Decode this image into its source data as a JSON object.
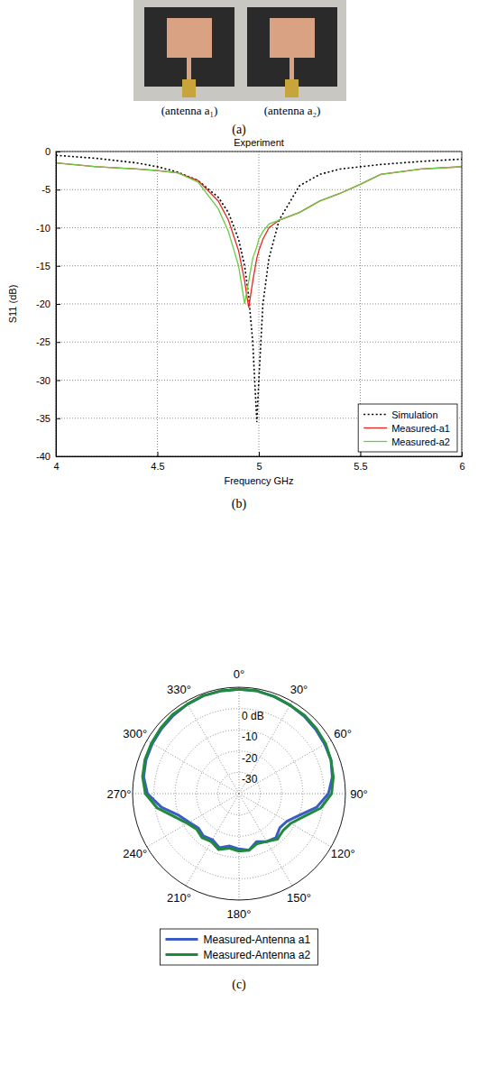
{
  "photo": {
    "labels": [
      "(antenna a₁)",
      "(antenna a₂)"
    ],
    "caption": "(a)"
  },
  "chart_data": [
    {
      "type": "line",
      "title": "Experiment",
      "xlabel": "Frequency GHz",
      "ylabel": "S11 (dB)",
      "caption": "(b)",
      "x": [
        4,
        4.2,
        4.4,
        4.5,
        4.6,
        4.7,
        4.8,
        4.85,
        4.9,
        4.93,
        4.95,
        4.97,
        4.99,
        5,
        5.02,
        5.05,
        5.1,
        5.2,
        5.3,
        5.4,
        5.5,
        5.6,
        5.8,
        6
      ],
      "series": [
        {
          "name": "Simulation",
          "color": "#000000",
          "line_style": "dotted",
          "values": [
            -0.5,
            -0.9,
            -1.5,
            -2,
            -2.7,
            -3.8,
            -6,
            -8,
            -11.5,
            -15,
            -19,
            -25,
            -35.5,
            -30,
            -20,
            -14,
            -9,
            -4.5,
            -3,
            -2.3,
            -2,
            -1.7,
            -1.3,
            -1
          ]
        },
        {
          "name": "Measured-a1",
          "color": "#e8251f",
          "line_style": "solid",
          "values": [
            -1.5,
            -2,
            -2.3,
            -2.5,
            -2.8,
            -3.8,
            -6.5,
            -9,
            -13,
            -17,
            -20.5,
            -17,
            -14,
            -13,
            -11.5,
            -10,
            -9,
            -8,
            -6.5,
            -5.5,
            -4.3,
            -3,
            -2.3,
            -2
          ]
        },
        {
          "name": "Measured-a2",
          "color": "#66cc44",
          "line_style": "solid",
          "values": [
            -1.5,
            -2,
            -2.3,
            -2.5,
            -2.8,
            -4,
            -7.5,
            -10.5,
            -15,
            -20,
            -17,
            -14,
            -12.5,
            -11.5,
            -10.5,
            -9.5,
            -9,
            -8,
            -6.5,
            -5.5,
            -4.3,
            -3,
            -2.3,
            -2
          ]
        }
      ],
      "xlim": [
        4,
        6
      ],
      "xticks": [
        4,
        4.5,
        5,
        5.5,
        6
      ],
      "ylim": [
        -40,
        0
      ],
      "yticks": [
        -40,
        -35,
        -30,
        -25,
        -20,
        -15,
        -10,
        -5,
        0
      ],
      "grid": true,
      "legend": "lower right"
    },
    {
      "type": "polar",
      "caption": "(c)",
      "x": [
        0,
        10,
        20,
        30,
        40,
        50,
        60,
        70,
        80,
        90,
        100,
        110,
        120,
        130,
        140,
        150,
        160,
        170,
        180,
        190,
        200,
        210,
        220,
        230,
        240,
        250,
        260,
        270,
        280,
        290,
        300,
        310,
        320,
        330,
        340,
        350,
        360
      ],
      "series": [
        {
          "name": "Measured-Antenna a1",
          "color": "#3b5cc4",
          "line_style": "solid",
          "values": [
            9,
            9,
            8.5,
            8,
            7.5,
            7,
            6.5,
            6,
            4.5,
            2,
            -3,
            -10,
            -14,
            -15,
            -13,
            -14,
            -16,
            -13,
            -14,
            -15,
            -13,
            -15,
            -14,
            -15,
            -13,
            -10,
            -3,
            3,
            5.5,
            6.5,
            7,
            7.5,
            8,
            8.5,
            9,
            9,
            9
          ]
        },
        {
          "name": "Measured-Antenna a2",
          "color": "#1f8a3c",
          "line_style": "solid",
          "values": [
            9,
            9,
            8.5,
            8,
            8,
            7.5,
            7,
            6,
            5,
            3.5,
            -1,
            -8,
            -12,
            -13,
            -12,
            -14,
            -15,
            -13,
            -13,
            -14,
            -12,
            -14,
            -13,
            -14,
            -12,
            -8,
            -1,
            4,
            6,
            7,
            7.5,
            8,
            8.5,
            8.5,
            9,
            9,
            9
          ]
        }
      ],
      "xlim": [
        0,
        360
      ],
      "xticks": [
        {
          "value": 0,
          "label": "0°"
        },
        {
          "value": 30,
          "label": "30°"
        },
        {
          "value": 60,
          "label": "60°"
        },
        {
          "value": 90,
          "label": "90°"
        },
        {
          "value": 120,
          "label": "120°"
        },
        {
          "value": 150,
          "label": "150°"
        },
        {
          "value": 180,
          "label": "180°"
        },
        {
          "value": 210,
          "label": "210°"
        },
        {
          "value": 240,
          "label": "240°"
        },
        {
          "value": 270,
          "label": "270°"
        },
        {
          "value": 300,
          "label": "300°"
        },
        {
          "value": 330,
          "label": "330°"
        }
      ],
      "ylim": [
        -40,
        10
      ],
      "yticks": [
        -30,
        -20,
        -10,
        {
          "value": 0,
          "label": "0 dB"
        }
      ],
      "grid": true,
      "legend": "bottom"
    }
  ]
}
